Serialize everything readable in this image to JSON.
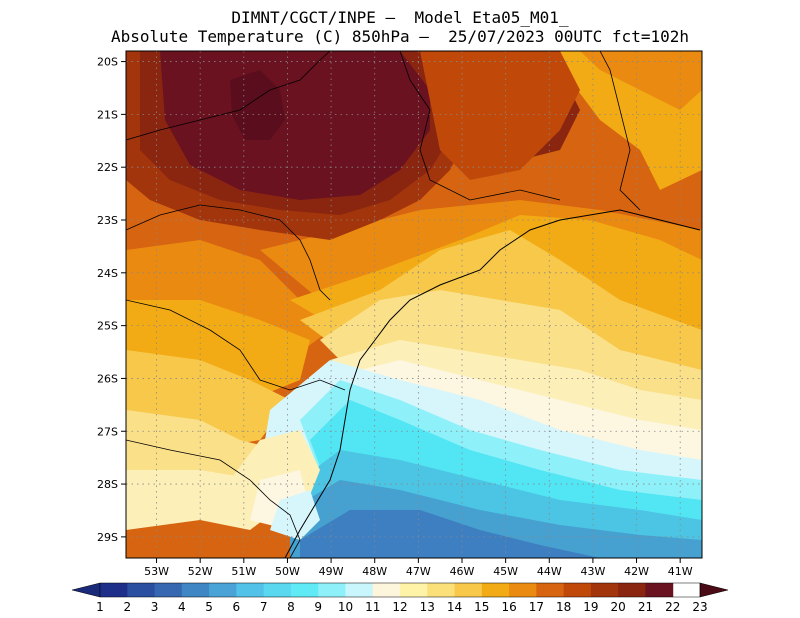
{
  "header": {
    "line1": "DIMNT/CGCT/INPE –  Model Eta05_M01_",
    "line2": "Absolute Temperature (C) 850hPa –  25/07/2023 00UTC fct=102h"
  },
  "map": {
    "lat_labels": [
      "20S",
      "21S",
      "22S",
      "23S",
      "24S",
      "25S",
      "26S",
      "27S",
      "28S",
      "29S"
    ],
    "lat_values": [
      20,
      21,
      22,
      23,
      24,
      25,
      26,
      27,
      28,
      29
    ],
    "lon_labels": [
      "53W",
      "52W",
      "51W",
      "50W",
      "49W",
      "48W",
      "47W",
      "46W",
      "45W",
      "44W",
      "43W",
      "42W",
      "41W"
    ],
    "lon_values": [
      53,
      52,
      51,
      50,
      49,
      48,
      47,
      46,
      45,
      44,
      43,
      42,
      41
    ],
    "lat_range": [
      19.8,
      29.4
    ],
    "lon_range": [
      53.7,
      40.5
    ],
    "temperature_bands": [
      {
        "label": "22+",
        "color": "#5a0d1c"
      },
      {
        "label": "21-22",
        "color": "#6a1220"
      },
      {
        "label": "20-21",
        "color": "#8a2510"
      },
      {
        "label": "19-20",
        "color": "#a2350c"
      },
      {
        "label": "18-19",
        "color": "#c0490a"
      },
      {
        "label": "17-18",
        "color": "#d66410"
      },
      {
        "label": "16-17",
        "color": "#ea8a10"
      },
      {
        "label": "15-16",
        "color": "#f2ab14"
      },
      {
        "label": "14-15",
        "color": "#f8c84a"
      },
      {
        "label": "13-14",
        "color": "#fbe08a"
      },
      {
        "label": "12-13",
        "color": "#fcefb8"
      },
      {
        "label": "11-12",
        "color": "#fdf6e0"
      },
      {
        "label": "10-11",
        "color": "#d6f6fc"
      },
      {
        "label": "9-10",
        "color": "#8ef0f8"
      },
      {
        "label": "8-9",
        "color": "#52e6f4"
      },
      {
        "label": "7-8",
        "color": "#4cc4e4"
      },
      {
        "label": "6-7",
        "color": "#46a0d0"
      },
      {
        "label": "5-6",
        "color": "#3d7fc0"
      },
      {
        "label": "4-5",
        "color": "#3163a8"
      }
    ]
  },
  "colorbar": {
    "labels": [
      "1",
      "2",
      "3",
      "4",
      "5",
      "6",
      "7",
      "8",
      "9",
      "10",
      "11",
      "12",
      "13",
      "14",
      "15",
      "16",
      "17",
      "18",
      "19",
      "20",
      "21",
      "22",
      "23"
    ],
    "colors": [
      "#1e2f8a",
      "#2a4ea0",
      "#3568b0",
      "#3f86c4",
      "#4aa3d6",
      "#52c2e8",
      "#5ad8f0",
      "#60eaf6",
      "#8ef0f8",
      "#c8f6fc",
      "#fdf5dc",
      "#fff3a8",
      "#fbe07a",
      "#f8c84a",
      "#f2ab14",
      "#ea8a10",
      "#d66410",
      "#c0490a",
      "#a2350c",
      "#8a2510",
      "#6a1220"
    ],
    "low_color": "#1a2a7a",
    "high_color": "#4a0a16"
  }
}
